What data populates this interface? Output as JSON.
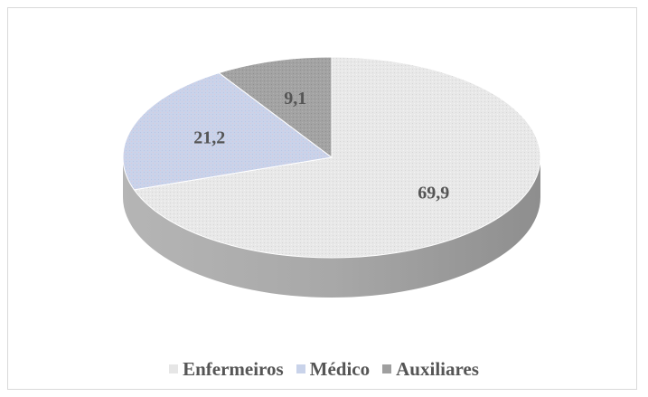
{
  "chart_data": {
    "type": "pie",
    "style": "3d",
    "categories": [
      "Enfermeiros",
      "Médico",
      "Auxiliares"
    ],
    "values": [
      69.9,
      21.2,
      9.1
    ],
    "value_labels": [
      "69,9",
      "21,2",
      "9,1"
    ],
    "colors": [
      "#e6e6e6",
      "#c9d3ea",
      "#9f9f9f"
    ],
    "legend_position": "bottom",
    "title": ""
  }
}
